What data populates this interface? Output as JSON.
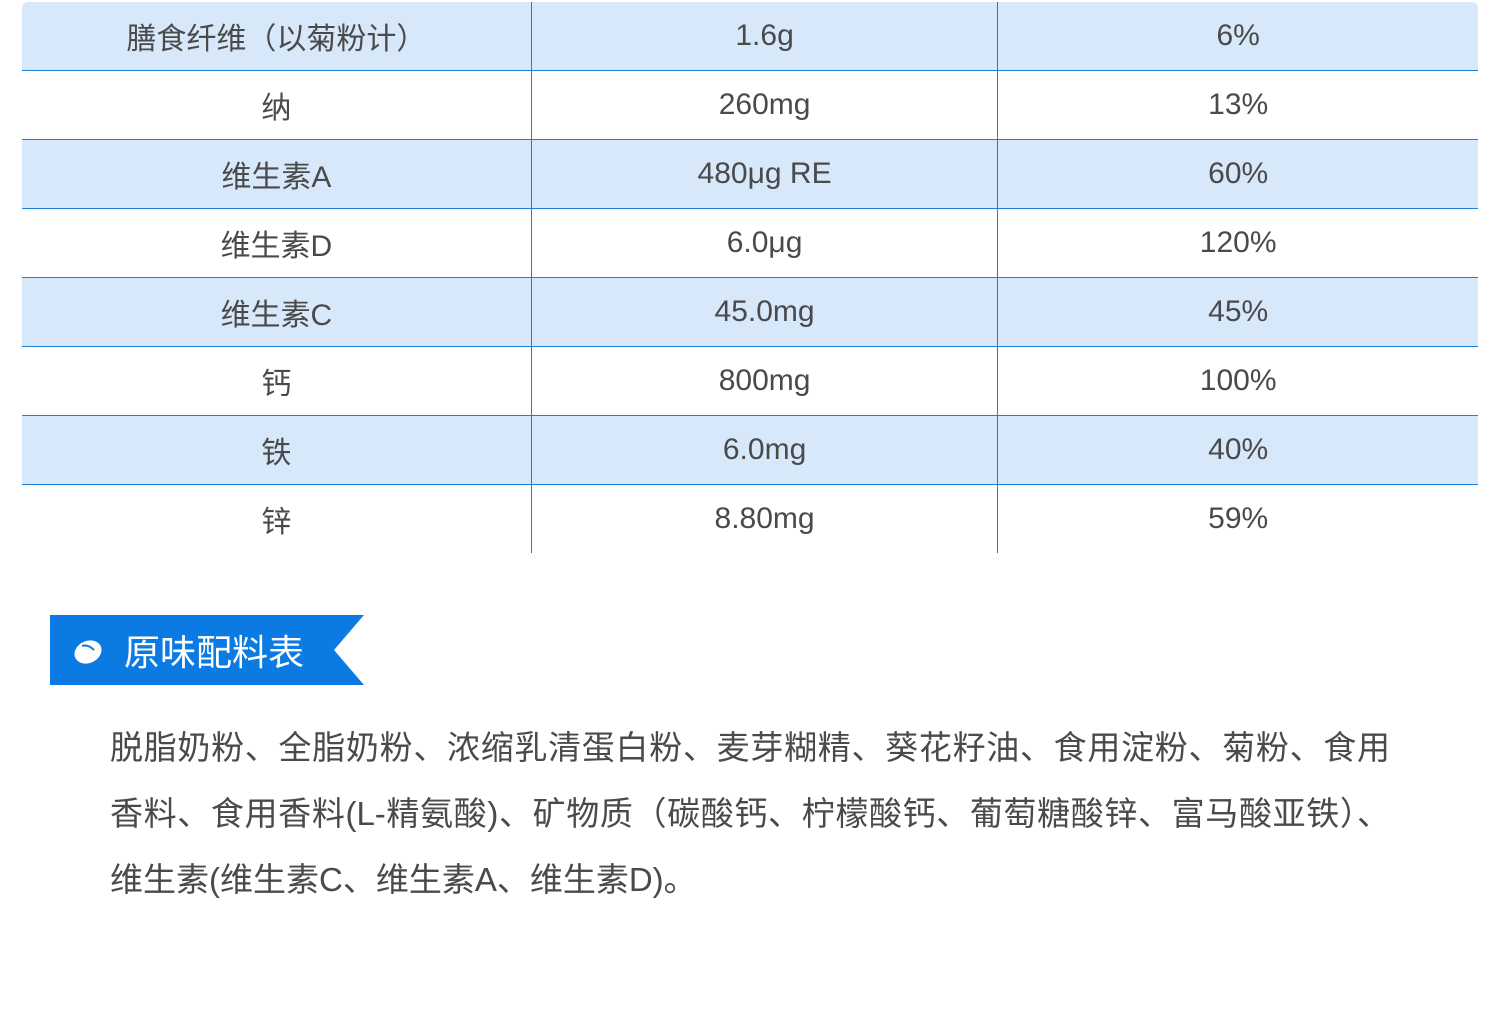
{
  "colors": {
    "table_border": "#1a7fd6",
    "row_alt_bg": "#d7e8fa",
    "row_bg": "#ffffff",
    "text": "#4a4a4a",
    "ribbon_bg": "#0b7be3",
    "ribbon_text": "#ffffff"
  },
  "nutrition_table": {
    "rows": [
      {
        "name": "膳食纤维（以菊粉计）",
        "value": "1.6g",
        "pct": "6%",
        "alt": true
      },
      {
        "name": "纳",
        "value": "260mg",
        "pct": "13%",
        "alt": false
      },
      {
        "name": "维生素A",
        "value": "480μg RE",
        "pct": "60%",
        "alt": true
      },
      {
        "name": "维生素D",
        "value": "6.0μg",
        "pct": "120%",
        "alt": false
      },
      {
        "name": "维生素C",
        "value": "45.0mg",
        "pct": "45%",
        "alt": true
      },
      {
        "name": "钙",
        "value": "800mg",
        "pct": "100%",
        "alt": false
      },
      {
        "name": "铁",
        "value": "6.0mg",
        "pct": "40%",
        "alt": true
      },
      {
        "name": "锌",
        "value": "8.80mg",
        "pct": "59%",
        "alt": false
      }
    ]
  },
  "ingredients_section": {
    "title": "原味配料表",
    "body": "脱脂奶粉、全脂奶粉、浓缩乳清蛋白粉、麦芽糊精、葵花籽油、食用淀粉、菊粉、食用香料、食用香料(L-精氨酸)、矿物质（碳酸钙、柠檬酸钙、葡萄糖酸锌、富马酸亚铁）、维生素(维生素C、维生素A、维生素D)。"
  }
}
